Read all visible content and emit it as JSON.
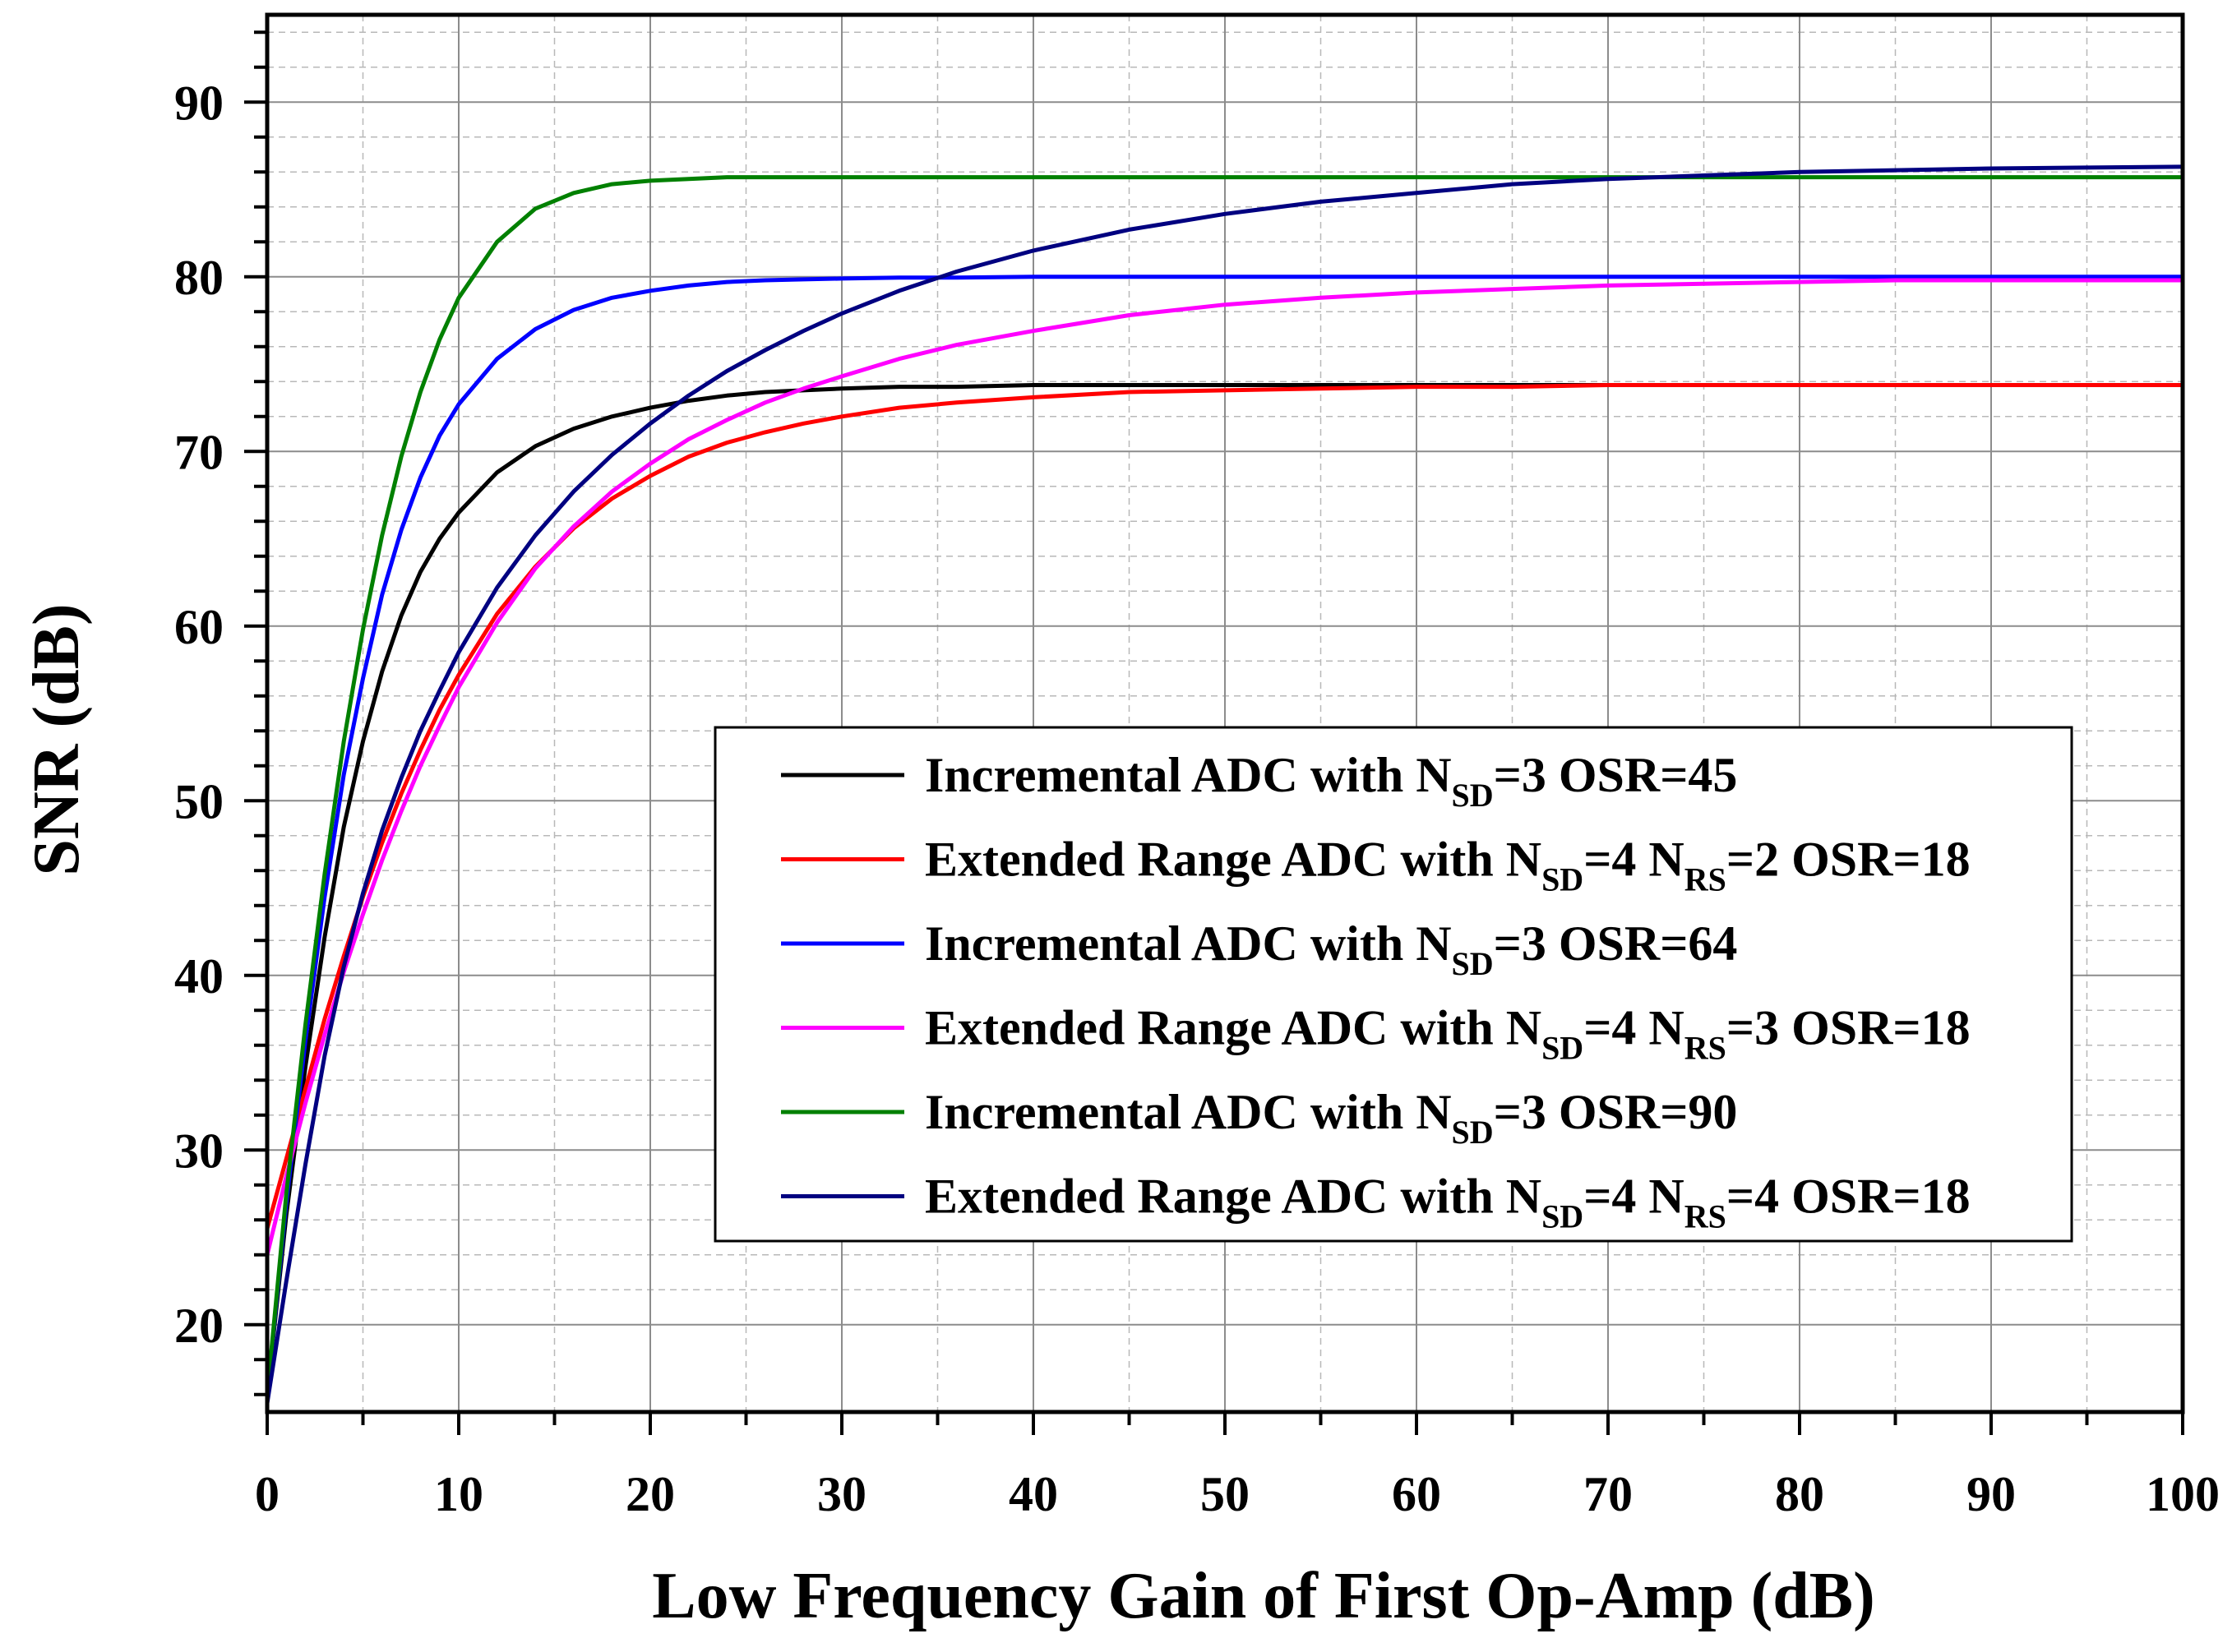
{
  "chart_data": {
    "type": "line",
    "title": "",
    "xlabel": "Low Frequency Gain of First Op-Amp (dB)",
    "ylabel": "SNR (dB)",
    "xlim": [
      0,
      100
    ],
    "ylim": [
      15,
      95
    ],
    "xticks": [
      "0",
      "10",
      "20",
      "30",
      "40",
      "50",
      "60",
      "70",
      "80",
      "90",
      "100"
    ],
    "yticks": [
      "20",
      "30",
      "40",
      "50",
      "60",
      "70",
      "80",
      "90"
    ],
    "grid": true,
    "legend_position": "lower-right",
    "x": [
      0,
      1,
      2,
      3,
      4,
      5,
      6,
      7,
      8,
      9,
      10,
      12,
      14,
      16,
      18,
      20,
      22,
      24,
      26,
      28,
      30,
      33,
      36,
      40,
      45,
      50,
      55,
      60,
      65,
      70,
      75,
      80,
      85,
      90,
      95,
      100
    ],
    "series": [
      {
        "legend": {
          "pre": "Incremental ADC with N",
          "sub1": "SD",
          "mid": "=3 OSR=45",
          "sub2": "",
          "post": ""
        },
        "color": "#000000",
        "values": [
          16,
          26.3,
          34.8,
          42.2,
          48.5,
          53.4,
          57.4,
          60.6,
          63.1,
          65,
          66.5,
          68.8,
          70.3,
          71.3,
          72,
          72.5,
          72.9,
          73.2,
          73.4,
          73.5,
          73.6,
          73.7,
          73.7,
          73.8,
          73.8,
          73.8,
          73.8,
          73.8,
          73.8,
          73.8,
          73.8,
          73.8,
          73.8,
          73.8,
          73.8,
          73.8
        ]
      },
      {
        "legend": {
          "pre": "Extended Range ADC with N",
          "sub1": "SD",
          "mid": "=4 N",
          "sub2": "RS",
          "post": "=2 OSR=18"
        },
        "color": "#ff0000",
        "values": [
          25.5,
          29.5,
          33.5,
          37.5,
          41.1,
          44.5,
          47.6,
          50.4,
          52.9,
          55.2,
          57.2,
          60.7,
          63.4,
          65.6,
          67.3,
          68.6,
          69.7,
          70.5,
          71.1,
          71.6,
          72,
          72.5,
          72.8,
          73.1,
          73.4,
          73.5,
          73.6,
          73.7,
          73.7,
          73.8,
          73.8,
          73.8,
          73.8,
          73.8,
          73.8,
          73.8
        ]
      },
      {
        "legend": {
          "pre": "Incremental ADC with N",
          "sub1": "SD",
          "mid": "=3 OSR=64",
          "sub2": "",
          "post": ""
        },
        "color": "#0000ff",
        "values": [
          16,
          27,
          36.3,
          44.5,
          51.5,
          57,
          61.8,
          65.5,
          68.5,
          70.9,
          72.7,
          75.3,
          77,
          78.1,
          78.8,
          79.2,
          79.5,
          79.7,
          79.8,
          79.85,
          79.9,
          79.95,
          79.95,
          80,
          80,
          80,
          80,
          80,
          80,
          80,
          80,
          80,
          80,
          80,
          80,
          80
        ]
      },
      {
        "legend": {
          "pre": "Extended Range ADC with N",
          "sub1": "SD",
          "mid": "=4 N",
          "sub2": "RS",
          "post": "=3 OSR=18"
        },
        "color": "#ff00ff",
        "values": [
          24,
          28.5,
          32.7,
          36.6,
          40.2,
          43.5,
          46.6,
          49.4,
          52,
          54.3,
          56.5,
          60.2,
          63.3,
          65.7,
          67.7,
          69.3,
          70.7,
          71.8,
          72.8,
          73.6,
          74.3,
          75.3,
          76.1,
          76.9,
          77.8,
          78.4,
          78.8,
          79.1,
          79.3,
          79.5,
          79.6,
          79.7,
          79.8,
          79.8,
          79.8,
          79.8
        ]
      },
      {
        "legend": {
          "pre": "Incremental ADC with N",
          "sub1": "SD",
          "mid": "=3 OSR=90",
          "sub2": "",
          "post": ""
        },
        "color": "#008000",
        "values": [
          16,
          27.5,
          37.2,
          45.8,
          53.4,
          59.8,
          65.2,
          69.7,
          73.4,
          76.4,
          78.8,
          82,
          83.9,
          84.8,
          85.3,
          85.5,
          85.6,
          85.7,
          85.7,
          85.7,
          85.7,
          85.7,
          85.7,
          85.7,
          85.7,
          85.7,
          85.7,
          85.7,
          85.7,
          85.7,
          85.7,
          85.7,
          85.7,
          85.7,
          85.7,
          85.7
        ]
      },
      {
        "legend": {
          "pre": "Extended Range ADC with N",
          "sub1": "SD",
          "mid": "=4 N",
          "sub2": "RS",
          "post": "=4 OSR=18"
        },
        "color": "#000080",
        "values": [
          15.5,
          22.5,
          29.2,
          35.4,
          40.5,
          44.7,
          48.3,
          51.3,
          54,
          56.3,
          58.5,
          62.2,
          65.2,
          67.7,
          69.8,
          71.6,
          73.2,
          74.6,
          75.8,
          76.9,
          77.9,
          79.2,
          80.3,
          81.5,
          82.7,
          83.6,
          84.3,
          84.8,
          85.3,
          85.6,
          85.8,
          86,
          86.1,
          86.2,
          86.25,
          86.3
        ]
      }
    ]
  }
}
